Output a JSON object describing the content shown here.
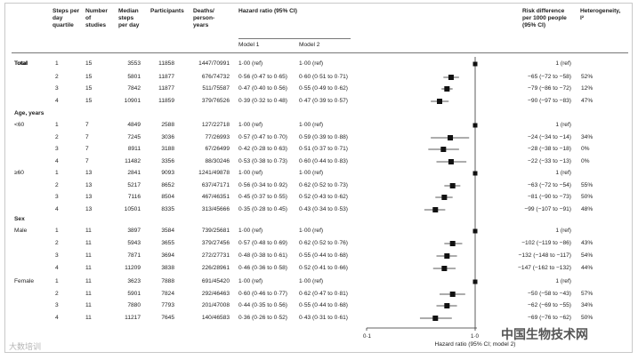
{
  "headers": {
    "quartile": "Steps per\nday\nquartile",
    "studies": "Number\nof\nstudies",
    "median_steps": "Median\nsteps\nper day",
    "participants": "Participants",
    "deaths": "Deaths/\nperson-\nyears",
    "hazard": "Hazard ratio (95% CI)",
    "model1": "Model 1",
    "model2": "Model 2",
    "risk": "Risk difference\nper 1000 people\n(95% CI)",
    "heterogeneity": "Heterogeneity,\nI²"
  },
  "sections": [
    {
      "label": "Total"
    },
    {
      "label": "Age, years"
    },
    {
      "label": "Sex"
    }
  ],
  "rows": [
    {
      "group": "Total",
      "q": "1",
      "studies": "15",
      "median": "3553",
      "participants": "11858",
      "deaths": "1447/70991",
      "m1": "1·00 (ref)",
      "m2": "1·00 (ref)",
      "risk": "1 (ref)",
      "het": ""
    },
    {
      "group": "",
      "q": "2",
      "studies": "15",
      "median": "5801",
      "participants": "11877",
      "deaths": "676/74732",
      "m1": "0·56 (0·47 to 0·65)",
      "m2": "0·60 (0·51 to 0·71)",
      "risk": "−65 (−72 to −58)",
      "het": "52%"
    },
    {
      "group": "",
      "q": "3",
      "studies": "15",
      "median": "7842",
      "participants": "11877",
      "deaths": "511/75587",
      "m1": "0·47 (0·40 to 0·56)",
      "m2": "0·55 (0·49 to 0·62)",
      "risk": "−79 (−86 to −72)",
      "het": "12%"
    },
    {
      "group": "",
      "q": "4",
      "studies": "15",
      "median": "10901",
      "participants": "11859",
      "deaths": "379/76526",
      "m1": "0·39 (0·32 to 0·48)",
      "m2": "0·47 (0·39 to 0·57)",
      "risk": "−90 (−97 to −83)",
      "het": "47%"
    },
    {
      "group": "<60",
      "q": "1",
      "studies": "7",
      "median": "4849",
      "participants": "2588",
      "deaths": "127/22718",
      "m1": "1·00 (ref)",
      "m2": "1·00 (ref)",
      "risk": "1 (ref)",
      "het": ""
    },
    {
      "group": "",
      "q": "2",
      "studies": "7",
      "median": "7245",
      "participants": "3036",
      "deaths": "77/26993",
      "m1": "0·57 (0·47 to 0·70)",
      "m2": "0·59 (0·39 to 0·88)",
      "risk": "−24 (−34 to −14)",
      "het": "34%"
    },
    {
      "group": "",
      "q": "3",
      "studies": "7",
      "median": "8911",
      "participants": "3188",
      "deaths": "67/26499",
      "m1": "0·42 (0·28 to 0·63)",
      "m2": "0·51 (0·37 to 0·71)",
      "risk": "−28 (−38 to −18)",
      "het": "0%"
    },
    {
      "group": "",
      "q": "4",
      "studies": "7",
      "median": "11482",
      "participants": "3356",
      "deaths": "88/30246",
      "m1": "0·53 (0·38 to 0·73)",
      "m2": "0·60 (0·44 to 0·83)",
      "risk": "−22 (−33 to −13)",
      "het": "0%"
    },
    {
      "group": "≥60",
      "q": "1",
      "studies": "13",
      "median": "2841",
      "participants": "9093",
      "deaths": "1241/49878",
      "m1": "1·00 (ref)",
      "m2": "1·00 (ref)",
      "risk": "1 (ref)",
      "het": ""
    },
    {
      "group": "",
      "q": "2",
      "studies": "13",
      "median": "5217",
      "participants": "8652",
      "deaths": "637/47171",
      "m1": "0·56 (0·34 to 0·92)",
      "m2": "0·62 (0·52 to 0·73)",
      "risk": "−63 (−72 to −54)",
      "het": "55%"
    },
    {
      "group": "",
      "q": "3",
      "studies": "13",
      "median": "7116",
      "participants": "8504",
      "deaths": "467/46351",
      "m1": "0·45 (0·37 to 0·55)",
      "m2": "0·52 (0·43 to 0·62)",
      "risk": "−81 (−90 to −73)",
      "het": "50%"
    },
    {
      "group": "",
      "q": "4",
      "studies": "13",
      "median": "10501",
      "participants": "8335",
      "deaths": "313/45666",
      "m1": "0·35 (0·28 to 0·45)",
      "m2": "0·43 (0·34 to 0·53)",
      "risk": "−99 (−107 to −91)",
      "het": "48%"
    },
    {
      "group": "Male",
      "q": "1",
      "studies": "11",
      "median": "3897",
      "participants": "3584",
      "deaths": "739/25681",
      "m1": "1·00 (ref)",
      "m2": "1·00 (ref)",
      "risk": "1 (ref)",
      "het": ""
    },
    {
      "group": "",
      "q": "2",
      "studies": "11",
      "median": "5943",
      "participants": "3655",
      "deaths": "379/27456",
      "m1": "0·57 (0·48 to 0·69)",
      "m2": "0·62 (0·52 to 0·76)",
      "risk": "−102 (−119 to −86)",
      "het": "43%"
    },
    {
      "group": "",
      "q": "3",
      "studies": "11",
      "median": "7871",
      "participants": "3694",
      "deaths": "272/27731",
      "m1": "0·48 (0·38 to 0·61)",
      "m2": "0·55 (0·44 to 0·68)",
      "risk": "−132 (−148 to −117)",
      "het": "54%"
    },
    {
      "group": "",
      "q": "4",
      "studies": "11",
      "median": "11209",
      "participants": "3838",
      "deaths": "226/28961",
      "m1": "0·46 (0·36 to 0·58)",
      "m2": "0·52 (0·41 to 0·66)",
      "risk": "−147 (−162 to −132)",
      "het": "44%"
    },
    {
      "group": "Female",
      "q": "1",
      "studies": "11",
      "median": "3623",
      "participants": "7888",
      "deaths": "691/45420",
      "m1": "1·00 (ref)",
      "m2": "1·00 (ref)",
      "risk": "1 (ref)",
      "het": ""
    },
    {
      "group": "",
      "q": "2",
      "studies": "11",
      "median": "5901",
      "participants": "7824",
      "deaths": "292/46463",
      "m1": "0·60 (0·46 to 0·77)",
      "m2": "0·62 (0·47 to 0·81)",
      "risk": "−50 (−58 to −43)",
      "het": "57%"
    },
    {
      "group": "",
      "q": "3",
      "studies": "11",
      "median": "7880",
      "participants": "7793",
      "deaths": "201/47008",
      "m1": "0·44 (0·35 to 0·56)",
      "m2": "0·55 (0·44 to 0·68)",
      "risk": "−62 (−69 to −55)",
      "het": "34%"
    },
    {
      "group": "",
      "q": "4",
      "studies": "11",
      "median": "11217",
      "participants": "7645",
      "deaths": "140/46583",
      "m1": "0·36 (0·26 to 0·52)",
      "m2": "0·43 (0·31 to 0·61)",
      "risk": "−69 (−76 to −62)",
      "het": "50%"
    }
  ],
  "chart_data": {
    "type": "forest",
    "xlabel": "Hazard ratio (95% CI; model 2)",
    "xscale": "log",
    "xlim": [
      0.1,
      1.0
    ],
    "ticks": [
      "0·1",
      "1·0"
    ],
    "reference_line": 1.0,
    "points": [
      {
        "hr": 1.0,
        "lo": 1.0,
        "hi": 1.0
      },
      {
        "hr": 0.6,
        "lo": 0.51,
        "hi": 0.71
      },
      {
        "hr": 0.55,
        "lo": 0.49,
        "hi": 0.62
      },
      {
        "hr": 0.47,
        "lo": 0.39,
        "hi": 0.57
      },
      {
        "hr": 1.0,
        "lo": 1.0,
        "hi": 1.0
      },
      {
        "hr": 0.59,
        "lo": 0.39,
        "hi": 0.88
      },
      {
        "hr": 0.51,
        "lo": 0.37,
        "hi": 0.71
      },
      {
        "hr": 0.6,
        "lo": 0.44,
        "hi": 0.83
      },
      {
        "hr": 1.0,
        "lo": 1.0,
        "hi": 1.0
      },
      {
        "hr": 0.62,
        "lo": 0.52,
        "hi": 0.73
      },
      {
        "hr": 0.52,
        "lo": 0.43,
        "hi": 0.62
      },
      {
        "hr": 0.43,
        "lo": 0.34,
        "hi": 0.53
      },
      {
        "hr": 1.0,
        "lo": 1.0,
        "hi": 1.0
      },
      {
        "hr": 0.62,
        "lo": 0.52,
        "hi": 0.76
      },
      {
        "hr": 0.55,
        "lo": 0.44,
        "hi": 0.68
      },
      {
        "hr": 0.52,
        "lo": 0.41,
        "hi": 0.66
      },
      {
        "hr": 1.0,
        "lo": 1.0,
        "hi": 1.0
      },
      {
        "hr": 0.62,
        "lo": 0.47,
        "hi": 0.81
      },
      {
        "hr": 0.55,
        "lo": 0.44,
        "hi": 0.68
      },
      {
        "hr": 0.43,
        "lo": 0.31,
        "hi": 0.61
      }
    ]
  },
  "watermarks": {
    "left": "大数培训",
    "right": "中国生物技术网"
  }
}
